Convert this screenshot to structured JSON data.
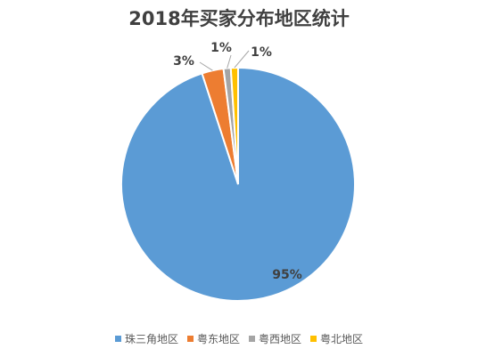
{
  "chart_data": {
    "type": "pie",
    "title": "2018年买家分布地区统计",
    "slices": [
      {
        "name": "珠三角地区",
        "value": 95,
        "label": "95%",
        "color": "#5B9BD5"
      },
      {
        "name": "粤东地区",
        "value": 3,
        "label": "3%",
        "color": "#ED7D31"
      },
      {
        "name": "粤西地区",
        "value": 1,
        "label": "1%",
        "color": "#A5A5A5"
      },
      {
        "name": "粤北地区",
        "value": 1,
        "label": "1%",
        "color": "#FFC000"
      }
    ],
    "legend_position": "bottom"
  }
}
